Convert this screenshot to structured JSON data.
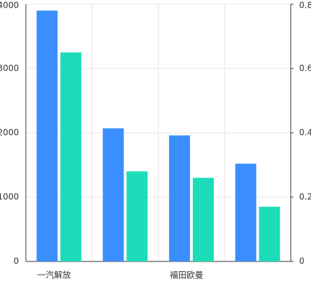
{
  "chart_data": {
    "type": "bar",
    "categories": [
      "一汽解放",
      null,
      "福田欧曼",
      null
    ],
    "series": [
      {
        "color": "#3a8eff",
        "values": [
          3900,
          2070,
          1960,
          1520
        ]
      },
      {
        "color": "#1ddcb9",
        "values": [
          0.65,
          0.28,
          0.26,
          0.17
        ],
        "axis": "y2"
      }
    ],
    "ylim": [
      0,
      4000
    ],
    "yticks": [
      0,
      1000,
      2000,
      3000,
      4000
    ],
    "y2lim": [
      0,
      0.8
    ],
    "y2ticks": [
      0,
      0.2,
      0.4,
      0.6,
      0.8
    ],
    "grid": true
  }
}
